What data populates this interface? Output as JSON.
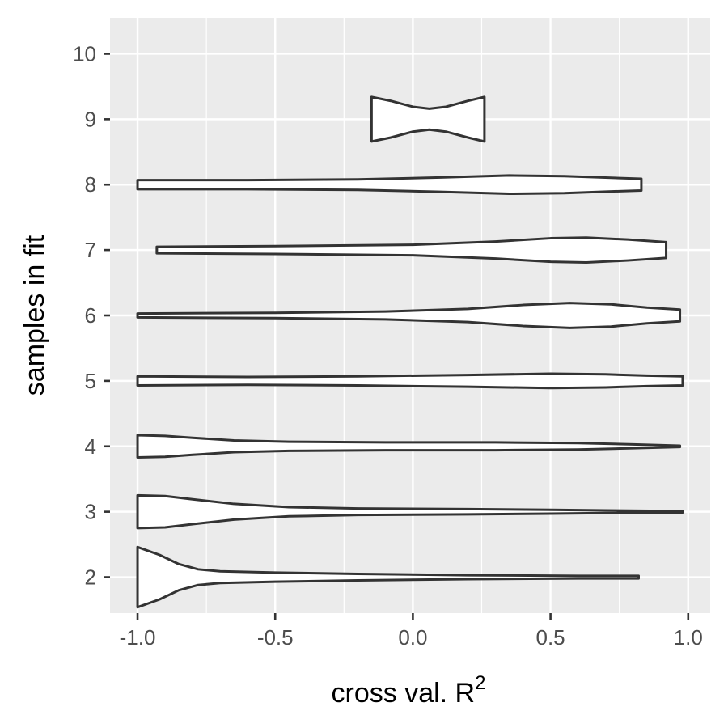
{
  "chart_data": {
    "type": "violin",
    "orientation": "horizontal",
    "xlabel": "cross val. R",
    "xlabel_superscript": "2",
    "ylabel": "samples in fit",
    "xlim": [
      -1.1,
      1.08
    ],
    "ylim": [
      1.45,
      10.55
    ],
    "x_ticks": [
      -1.0,
      -0.5,
      0.0,
      0.5,
      1.0
    ],
    "x_tick_labels": [
      "-1.0",
      "-0.5",
      "0.0",
      "0.5",
      "1.0"
    ],
    "y_ticks": [
      2,
      3,
      4,
      5,
      6,
      7,
      8,
      9,
      10
    ],
    "y_tick_labels": [
      "2",
      "3",
      "4",
      "5",
      "6",
      "7",
      "8",
      "9",
      "10"
    ],
    "grid": true,
    "colors": {
      "panel": "#ebebeb",
      "grid": "#ffffff",
      "outline": "#333333",
      "fill": "#ffffff"
    },
    "violins": [
      {
        "category": 2,
        "min": -1.0,
        "max": 0.82,
        "profile": [
          [
            -1.0,
            0.46
          ],
          [
            -0.92,
            0.34
          ],
          [
            -0.85,
            0.2
          ],
          [
            -0.78,
            0.12
          ],
          [
            -0.7,
            0.09
          ],
          [
            -0.5,
            0.07
          ],
          [
            -0.2,
            0.05
          ],
          [
            0.2,
            0.03
          ],
          [
            0.6,
            0.02
          ],
          [
            0.82,
            0.02
          ]
        ]
      },
      {
        "category": 3,
        "min": -1.0,
        "max": 0.98,
        "profile": [
          [
            -1.0,
            0.25
          ],
          [
            -0.9,
            0.24
          ],
          [
            -0.8,
            0.19
          ],
          [
            -0.65,
            0.12
          ],
          [
            -0.45,
            0.07
          ],
          [
            -0.2,
            0.05
          ],
          [
            0.2,
            0.04
          ],
          [
            0.5,
            0.03
          ],
          [
            0.7,
            0.02
          ],
          [
            0.98,
            0.01
          ]
        ]
      },
      {
        "category": 4,
        "min": -1.0,
        "max": 0.97,
        "profile": [
          [
            -1.0,
            0.17
          ],
          [
            -0.9,
            0.16
          ],
          [
            -0.8,
            0.13
          ],
          [
            -0.65,
            0.09
          ],
          [
            -0.45,
            0.07
          ],
          [
            -0.1,
            0.06
          ],
          [
            0.3,
            0.06
          ],
          [
            0.6,
            0.05
          ],
          [
            0.8,
            0.03
          ],
          [
            0.97,
            0.01
          ]
        ]
      },
      {
        "category": 5,
        "min": -1.0,
        "max": 0.98,
        "profile": [
          [
            -1.0,
            0.07
          ],
          [
            -0.6,
            0.06
          ],
          [
            -0.2,
            0.07
          ],
          [
            0.2,
            0.09
          ],
          [
            0.5,
            0.11
          ],
          [
            0.7,
            0.1
          ],
          [
            0.85,
            0.08
          ],
          [
            0.98,
            0.07
          ]
        ]
      },
      {
        "category": 6,
        "min": -1.0,
        "max": 0.97,
        "profile": [
          [
            -1.0,
            0.03
          ],
          [
            -0.5,
            0.04
          ],
          [
            -0.1,
            0.06
          ],
          [
            0.2,
            0.1
          ],
          [
            0.4,
            0.16
          ],
          [
            0.57,
            0.19
          ],
          [
            0.72,
            0.17
          ],
          [
            0.85,
            0.12
          ],
          [
            0.97,
            0.09
          ]
        ]
      },
      {
        "category": 7,
        "min": -0.93,
        "max": 0.92,
        "profile": [
          [
            -0.93,
            0.05
          ],
          [
            -0.5,
            0.06
          ],
          [
            0.0,
            0.08
          ],
          [
            0.3,
            0.13
          ],
          [
            0.5,
            0.18
          ],
          [
            0.63,
            0.19
          ],
          [
            0.78,
            0.16
          ],
          [
            0.92,
            0.12
          ]
        ]
      },
      {
        "category": 8,
        "min": -1.0,
        "max": 0.83,
        "profile": [
          [
            -1.0,
            0.07
          ],
          [
            -0.6,
            0.07
          ],
          [
            -0.2,
            0.08
          ],
          [
            0.1,
            0.11
          ],
          [
            0.35,
            0.14
          ],
          [
            0.55,
            0.13
          ],
          [
            0.75,
            0.1
          ],
          [
            0.83,
            0.09
          ]
        ]
      },
      {
        "category": 9,
        "min": -0.15,
        "max": 0.26,
        "profile": [
          [
            -0.15,
            0.34
          ],
          [
            -0.08,
            0.28
          ],
          [
            0.0,
            0.19
          ],
          [
            0.06,
            0.16
          ],
          [
            0.12,
            0.19
          ],
          [
            0.2,
            0.28
          ],
          [
            0.26,
            0.34
          ]
        ]
      }
    ]
  }
}
